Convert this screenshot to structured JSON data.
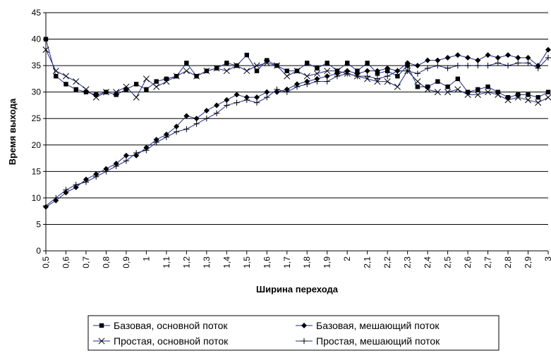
{
  "chart_data": {
    "type": "line",
    "x_label": "Ширина перехода",
    "y_label": "Время выхода",
    "x": [
      0.5,
      0.55,
      0.6,
      0.65,
      0.7,
      0.75,
      0.8,
      0.85,
      0.9,
      0.95,
      1,
      1.05,
      1.1,
      1.15,
      1.2,
      1.25,
      1.3,
      1.35,
      1.4,
      1.45,
      1.5,
      1.55,
      1.6,
      1.65,
      1.7,
      1.75,
      1.8,
      1.85,
      1.9,
      1.95,
      2,
      2.05,
      2.1,
      2.15,
      2.2,
      2.25,
      2.3,
      2.35,
      2.4,
      2.45,
      2.5,
      2.55,
      2.6,
      2.65,
      2.7,
      2.75,
      2.8,
      2.85,
      2.9,
      2.95,
      3
    ],
    "series": [
      {
        "name": "Базовая, основной поток",
        "color": "#000000",
        "marker": "square",
        "values": [
          40,
          33,
          31.5,
          30.5,
          30,
          29.5,
          30,
          29.5,
          30.5,
          31.5,
          30.5,
          32,
          32.5,
          33,
          35.5,
          33,
          34,
          34.5,
          35.5,
          35,
          37,
          34,
          36,
          35,
          34,
          34,
          35.5,
          34.5,
          35.5,
          34,
          35.5,
          34,
          35.5,
          33.5,
          34,
          33,
          35,
          31,
          31,
          32,
          31,
          32.5,
          30,
          30.5,
          31,
          30,
          29,
          29.5,
          29.5,
          29,
          30
        ]
      },
      {
        "name": "Базовая, мешающий поток",
        "color": "#000000",
        "marker": "diamond",
        "values": [
          8.3,
          9.5,
          11,
          12,
          13.5,
          14.5,
          15.5,
          16.5,
          18,
          18,
          19.5,
          21,
          22,
          23.5,
          25.5,
          25,
          26.5,
          27.5,
          28.5,
          29.5,
          29,
          29,
          30,
          30,
          30.5,
          31.5,
          32,
          32.5,
          33,
          33.5,
          34,
          33.5,
          34,
          34,
          34.5,
          34,
          35.5,
          35,
          36,
          36,
          36.5,
          37,
          36.5,
          36,
          37,
          36.5,
          37,
          36.5,
          36.5,
          35,
          38
        ]
      },
      {
        "name": "Простая, основной поток",
        "color": "#000000",
        "marker": "x",
        "values": [
          38,
          34,
          33,
          32,
          30.5,
          29,
          30,
          30,
          31,
          29,
          32.5,
          31,
          32,
          33,
          34,
          33,
          34,
          34.5,
          34,
          35,
          34,
          35,
          35.5,
          35,
          33,
          34,
          33,
          33.5,
          34,
          34,
          33.5,
          33,
          32.5,
          32,
          32,
          31,
          34,
          32,
          30.5,
          30,
          30,
          30.5,
          29.5,
          29.5,
          30,
          29.5,
          28.5,
          29,
          28.5,
          28,
          29
        ]
      },
      {
        "name": "Простая, мешающий поток",
        "color": "#000000",
        "marker": "plus",
        "values": [
          8.5,
          10,
          11.5,
          12.5,
          13,
          14,
          15,
          16,
          17,
          18.5,
          19,
          20.5,
          21.5,
          22.5,
          23,
          24,
          25,
          26,
          27.5,
          28,
          28.5,
          28,
          29,
          30.5,
          30,
          31,
          31.5,
          32,
          32,
          33,
          33.5,
          33,
          33,
          32.5,
          33,
          34,
          34,
          33.5,
          34.5,
          35,
          34.5,
          35,
          35,
          35,
          35,
          35.5,
          35,
          35.5,
          35.5,
          34.5,
          36.5
        ]
      }
    ],
    "line_color": "#1f2a8a",
    "xlim": [
      0.5,
      3
    ],
    "xticks": [
      {
        "value": 0.5,
        "label": "0,5"
      },
      {
        "value": 0.6,
        "label": "0,6"
      },
      {
        "value": 0.7,
        "label": "0,7"
      },
      {
        "value": 0.8,
        "label": "0,8"
      },
      {
        "value": 0.9,
        "label": "0,9"
      },
      1,
      {
        "value": 1.1,
        "label": "1,1"
      },
      {
        "value": 1.2,
        "label": "1,2"
      },
      {
        "value": 1.3,
        "label": "1,3"
      },
      {
        "value": 1.4,
        "label": "1,4"
      },
      {
        "value": 1.5,
        "label": "1,5"
      },
      {
        "value": 1.6,
        "label": "1,6"
      },
      {
        "value": 1.7,
        "label": "1,7"
      },
      {
        "value": 1.8,
        "label": "1,8"
      },
      {
        "value": 1.9,
        "label": "1,9"
      },
      2,
      {
        "value": 2.1,
        "label": "2,1"
      },
      {
        "value": 2.2,
        "label": "2,2"
      },
      {
        "value": 2.3,
        "label": "2,3"
      },
      {
        "value": 2.4,
        "label": "2,4"
      },
      {
        "value": 2.5,
        "label": "2,5"
      },
      {
        "value": 2.6,
        "label": "2,6"
      },
      {
        "value": 2.7,
        "label": "2,7"
      },
      {
        "value": 2.8,
        "label": "2,8"
      },
      {
        "value": 2.9,
        "label": "2,9"
      },
      3
    ],
    "ylim": [
      0,
      45
    ],
    "yticks": [
      0,
      5,
      10,
      15,
      20,
      25,
      30,
      35,
      40,
      45
    ],
    "grid": true
  }
}
